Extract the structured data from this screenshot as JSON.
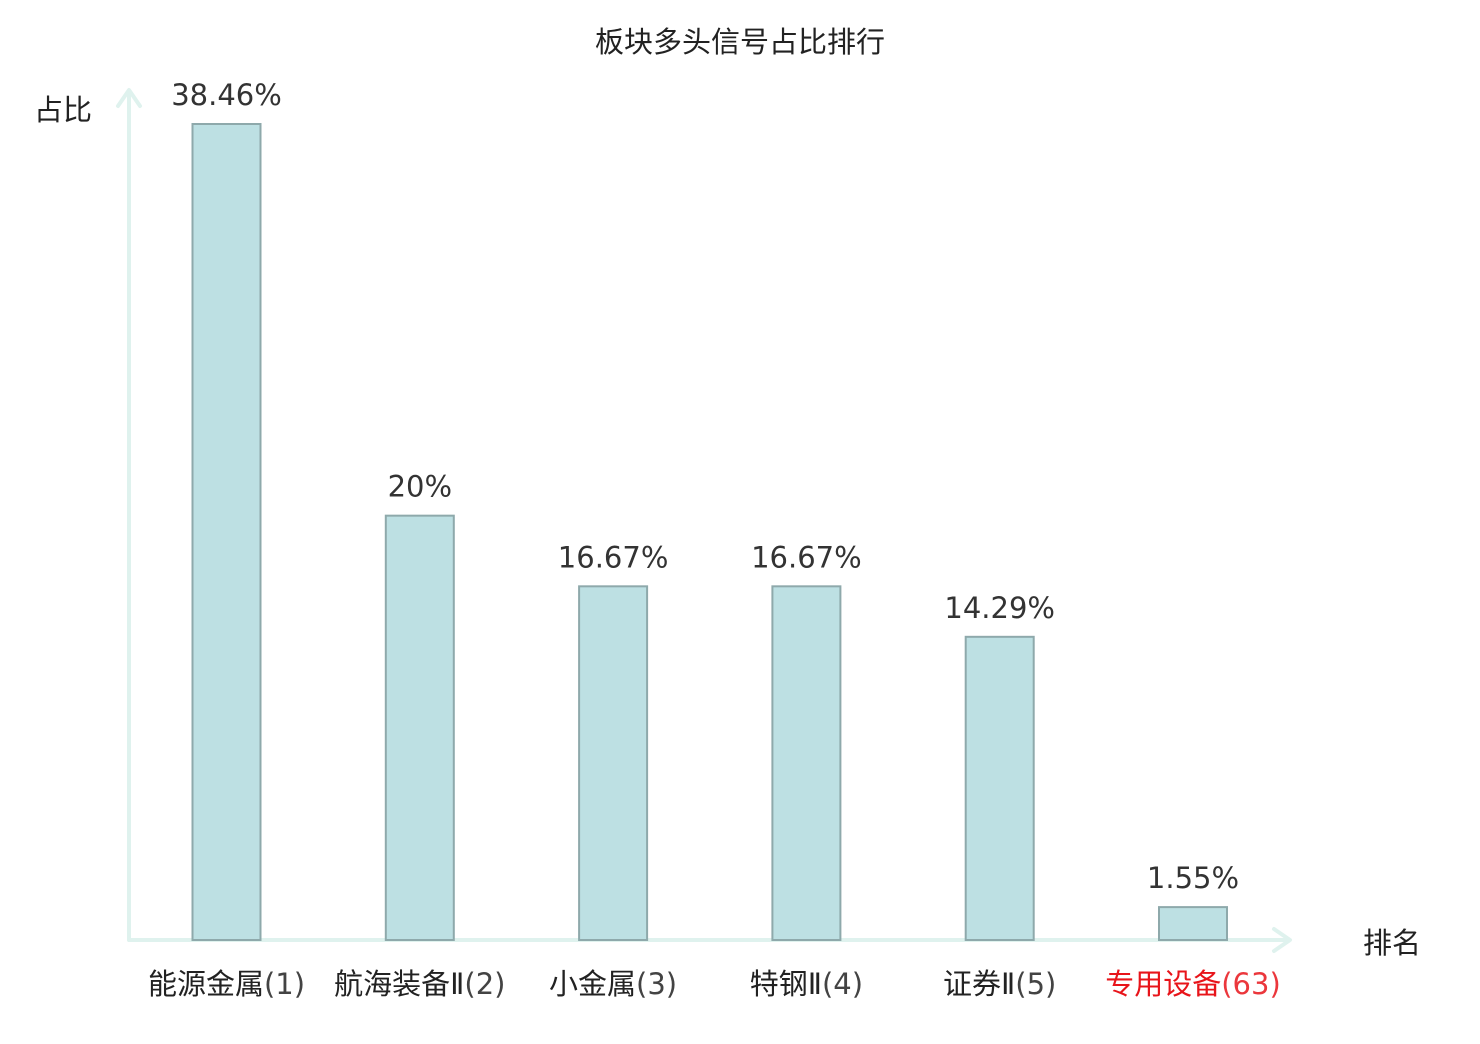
{
  "chart_data": {
    "type": "bar",
    "title": "板块多头信号占比排行",
    "ylabel": "占比",
    "xlabel": "排名",
    "ylim": [
      0,
      40
    ],
    "grid": false,
    "legend": "none",
    "categories": [
      {
        "name": "能源金属",
        "rank": "(1)",
        "highlight": false
      },
      {
        "name": "航海装备Ⅱ",
        "rank": "(2)",
        "highlight": false
      },
      {
        "name": "小金属",
        "rank": "(3)",
        "highlight": false
      },
      {
        "name": "特钢Ⅱ",
        "rank": "(4)",
        "highlight": false
      },
      {
        "name": "证券Ⅱ",
        "rank": "(5)",
        "highlight": false
      },
      {
        "name": "专用设备",
        "rank": "(63)",
        "highlight": true
      }
    ],
    "values": [
      38.46,
      20,
      16.67,
      16.67,
      14.29,
      1.55
    ],
    "value_labels": [
      "38.46%",
      "20%",
      "16.67%",
      "16.67%",
      "14.29%",
      "1.55%"
    ],
    "colors": {
      "bar_fill": "#bde0e3",
      "bar_stroke": "#8ea9ab",
      "axis": "#dff2ee",
      "text": "#222222",
      "highlight_text": "#e8141a"
    }
  }
}
